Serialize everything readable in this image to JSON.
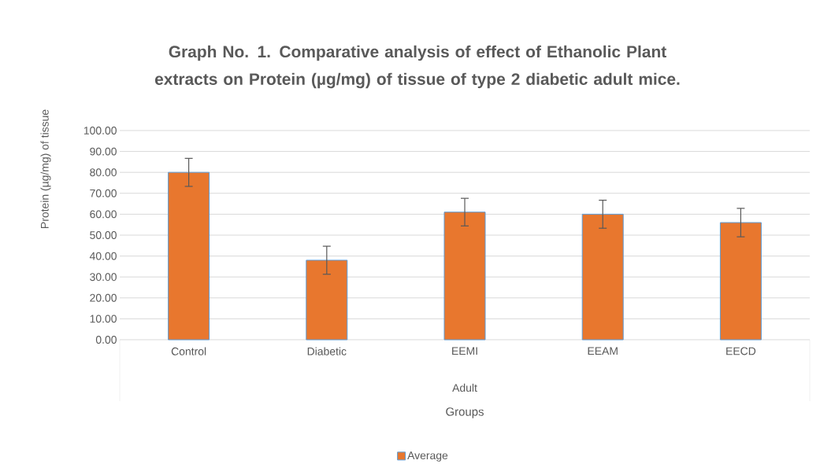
{
  "chart_data": {
    "type": "bar",
    "title": "Graph No. 1. Comparative analysis of effect of Ethanolic Plant extracts on Protein (µg/mg) of tissue of type 2 diabetic adult mice.",
    "xlabel": "Groups",
    "ylabel": "Protein (µg/mg) of tissue",
    "categories": [
      "Control",
      "Diabetic",
      "EEMI",
      "EEAM",
      "EECD"
    ],
    "series": [
      {
        "name": "Average",
        "color": "#e8772e",
        "values": [
          80,
          38,
          61,
          60,
          56
        ],
        "errors": [
          6.7,
          6.7,
          6.6,
          6.7,
          6.8
        ]
      }
    ],
    "annotations": [
      "Adult"
    ],
    "ylim": [
      0,
      100
    ],
    "yticks": [
      {
        "value": 0,
        "label": "0.00"
      },
      {
        "value": 10,
        "label": "10.00"
      },
      {
        "value": 20,
        "label": "20.00"
      },
      {
        "value": 30,
        "label": "30.00"
      },
      {
        "value": 40,
        "label": "40.00"
      },
      {
        "value": 50,
        "label": "50.00"
      },
      {
        "value": 60,
        "label": "60.00"
      },
      {
        "value": 70,
        "label": "70.00"
      },
      {
        "value": 80,
        "label": "80.00"
      },
      {
        "value": 90,
        "label": "90.00"
      },
      {
        "value": 100,
        "label": "100.00"
      }
    ],
    "grid": "y",
    "legend": "bottom"
  }
}
